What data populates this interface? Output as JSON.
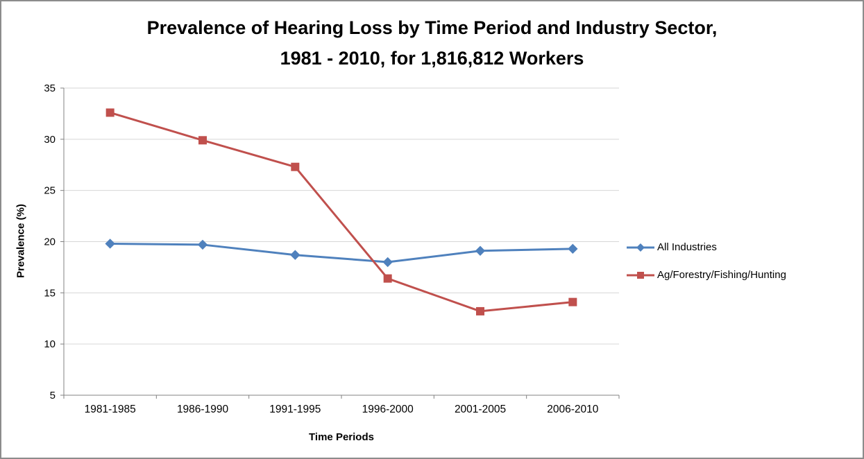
{
  "chart_data": {
    "type": "line",
    "title_lines": [
      "Prevalence of Hearing Loss by Time Period and Industry Sector,",
      "1981 - 2010, for 1,816,812 Workers"
    ],
    "xlabel": "Time Periods",
    "ylabel": "Prevalence (%)",
    "ylim": [
      5,
      35
    ],
    "yticks": [
      5,
      10,
      15,
      20,
      25,
      30,
      35
    ],
    "categories": [
      "1981-1985",
      "1986-1990",
      "1991-1995",
      "1996-2000",
      "2001-2005",
      "2006-2010"
    ],
    "series": [
      {
        "name": "All Industries",
        "color": "#4F81BD",
        "marker": "diamond",
        "values": [
          19.8,
          19.7,
          18.7,
          18.0,
          19.1,
          19.3
        ]
      },
      {
        "name": "Ag/Forestry/Fishing/Hunting",
        "color": "#C0504D",
        "marker": "square",
        "values": [
          32.6,
          29.9,
          27.3,
          16.4,
          13.2,
          14.1
        ]
      }
    ],
    "grid": true,
    "legend_position": "right",
    "colors": {
      "gridline": "#D6D6D6",
      "axis": "#808080",
      "tick_label": "#000000"
    }
  }
}
